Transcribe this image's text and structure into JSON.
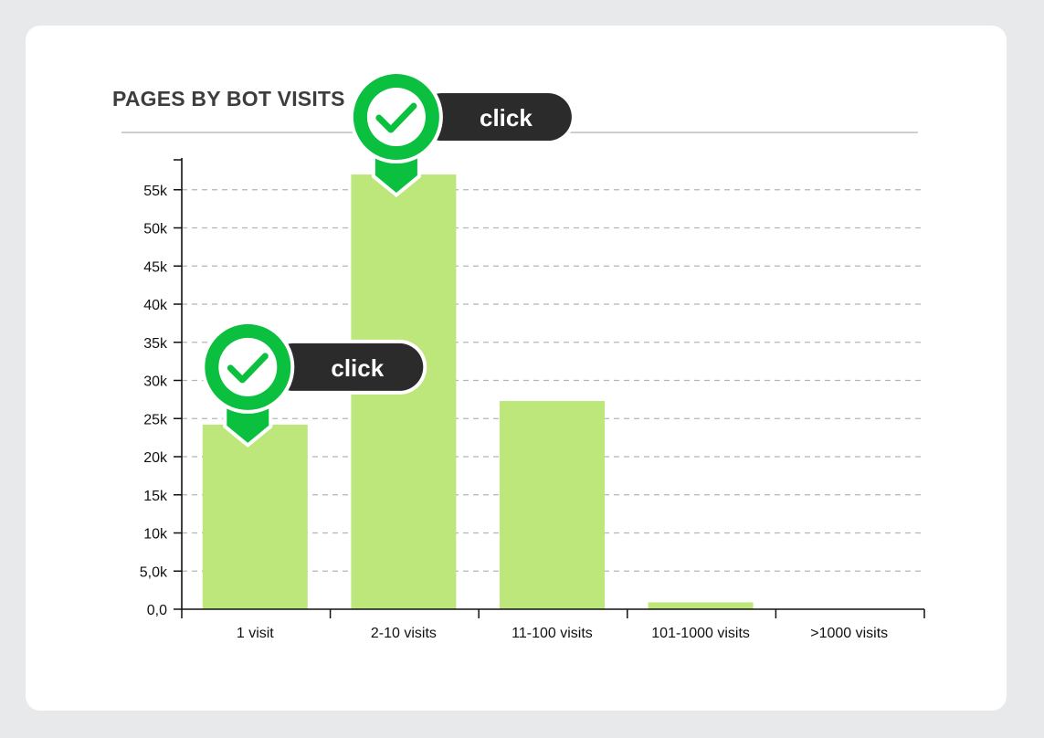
{
  "header": {
    "title": "PAGES BY BOT VISITS",
    "info_icon": "info-circle-icon"
  },
  "colors": {
    "bar": "#bde67b",
    "marker_green": "#0bbf3f",
    "marker_dark": "#2b2b2b",
    "grid": "#b5b5b5"
  },
  "chart_data": {
    "type": "bar",
    "title": "PAGES BY BOT VISITS",
    "xlabel": "",
    "ylabel": "",
    "categories": [
      "1 visit",
      "2-10 visits",
      "11-100 visits",
      "101-1000 visits",
      ">1000 visits"
    ],
    "values": [
      24200,
      57000,
      27300,
      900,
      0
    ],
    "ylim": [
      0,
      58000
    ],
    "y_ticks": [
      0,
      5000,
      10000,
      15000,
      20000,
      25000,
      30000,
      35000,
      40000,
      45000,
      50000,
      55000
    ],
    "y_tick_labels": [
      "0,0",
      "5,0k",
      "10k",
      "15k",
      "20k",
      "25k",
      "30k",
      "35k",
      "40k",
      "45k",
      "50k",
      "55k"
    ],
    "grid": true,
    "legend": "none"
  },
  "markers": [
    {
      "label": "click",
      "category": "2-10 visits",
      "icon": "checkmark-icon"
    },
    {
      "label": "click",
      "category": "1 visit",
      "icon": "checkmark-icon"
    }
  ]
}
